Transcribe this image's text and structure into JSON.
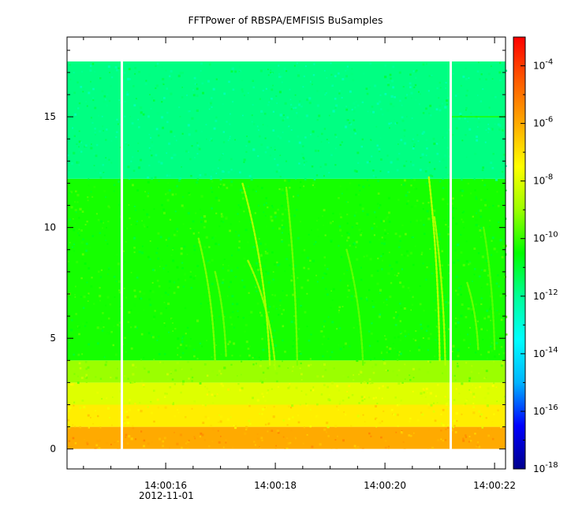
{
  "chart_data": {
    "type": "heatmap",
    "title": "FFTPower of RBSPA/EMFISIS  BuSamples",
    "xlabel": "",
    "ylabel": "",
    "x_ticks": [
      "14:00:16",
      "14:00:18",
      "14:00:20",
      "14:00:22"
    ],
    "x_date_label": "2012-11-01",
    "x_range": [
      "14:00:14.2",
      "14:00:22.2"
    ],
    "y_range": [
      -0.9,
      18.6
    ],
    "y_ticks": [
      0,
      5,
      10,
      15
    ],
    "data_y_range": [
      0,
      17.5
    ],
    "data_gaps_x": [
      "14:00:15.2",
      "14:00:21.2"
    ],
    "colorbar": {
      "scale": "log",
      "range": [
        1e-18,
        0.001
      ],
      "tick_labels": [
        {
          "base": "10",
          "exp": "-4"
        },
        {
          "base": "10",
          "exp": "-6"
        },
        {
          "base": "10",
          "exp": "-8"
        },
        {
          "base": "10",
          "exp": "-10"
        },
        {
          "base": "10",
          "exp": "-12"
        },
        {
          "base": "10",
          "exp": "-14"
        },
        {
          "base": "10",
          "exp": "-16"
        },
        {
          "base": "10",
          "exp": "-18"
        }
      ],
      "colormap": [
        "#00008c",
        "#0000ff",
        "#00b4ff",
        "#00ffff",
        "#00ff96",
        "#00ff00",
        "#9bff00",
        "#ffff00",
        "#ffaa00",
        "#ff5a00",
        "#ff0000"
      ]
    },
    "power_bands": [
      {
        "y_range": [
          0,
          1
        ],
        "typical_log10_power": -6.0
      },
      {
        "y_range": [
          1,
          2
        ],
        "typical_log10_power": -7.2
      },
      {
        "y_range": [
          2,
          3
        ],
        "typical_log10_power": -8.0
      },
      {
        "y_range": [
          3,
          4
        ],
        "typical_log10_power": -9.0
      },
      {
        "y_range": [
          4,
          12.2
        ],
        "typical_log10_power": -10.3
      },
      {
        "y_range": [
          12.2,
          17.5
        ],
        "typical_log10_power": -11.8
      }
    ],
    "chorus_elements": [
      {
        "label": "rising tone",
        "t_start": "14:00:17.4",
        "t_end": "14:00:17.9",
        "f_start": 3.8,
        "f_end": 12.0,
        "log10_power": -8.5
      },
      {
        "label": "rising tone",
        "t_start": "14:00:17.5",
        "t_end": "14:00:18.0",
        "f_start": 3.6,
        "f_end": 8.5,
        "log10_power": -8.8
      },
      {
        "label": "rising tone",
        "t_start": "14:00:16.6",
        "t_end": "14:00:16.9",
        "f_start": 4.0,
        "f_end": 9.5,
        "log10_power": -9.2
      },
      {
        "label": "rising tone",
        "t_start": "14:00:16.9",
        "t_end": "14:00:17.1",
        "f_start": 4.2,
        "f_end": 8.0,
        "log10_power": -9.4
      },
      {
        "label": "rising tone",
        "t_start": "14:00:18.2",
        "t_end": "14:00:18.4",
        "f_start": 3.8,
        "f_end": 11.8,
        "log10_power": -9.3
      },
      {
        "label": "rising tone",
        "t_start": "14:00:19.3",
        "t_end": "14:00:19.6",
        "f_start": 3.8,
        "f_end": 9.0,
        "log10_power": -9.5
      },
      {
        "label": "rising tone",
        "t_start": "14:00:20.8",
        "t_end": "14:00:21.0",
        "f_start": 4.0,
        "f_end": 12.3,
        "log10_power": -8.3
      },
      {
        "label": "rising tone",
        "t_start": "14:00:20.9",
        "t_end": "14:00:21.1",
        "f_start": 3.8,
        "f_end": 10.5,
        "log10_power": -8.6
      },
      {
        "label": "rising tone",
        "t_start": "14:00:21.5",
        "t_end": "14:00:21.7",
        "f_start": 4.5,
        "f_end": 7.5,
        "log10_power": -9.4
      },
      {
        "label": "rising tone",
        "t_start": "14:00:21.8",
        "t_end": "14:00:22.0",
        "f_start": 4.5,
        "f_end": 10.0,
        "log10_power": -9.6
      }
    ],
    "narrowband_line": {
      "frequency": 15.0,
      "t_start": "14:00:21.2",
      "t_end": "14:00:22.2",
      "log10_power": -10.2
    }
  }
}
